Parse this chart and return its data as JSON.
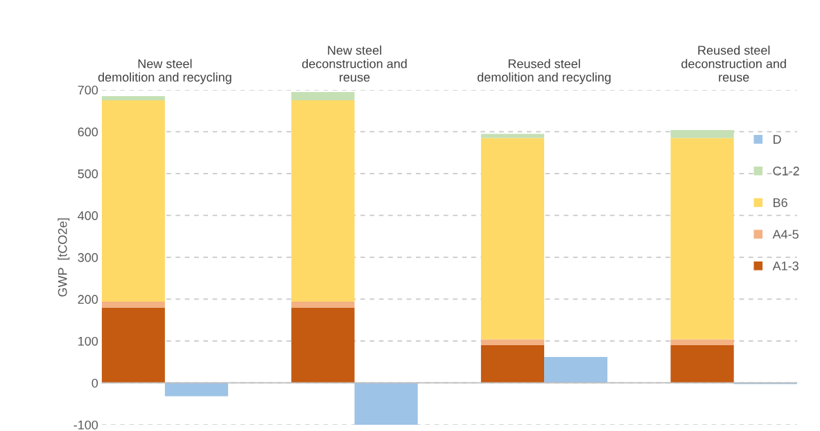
{
  "chart_data": {
    "type": "bar",
    "stacked": true,
    "categories": [
      "New steel\ndemolition and recycling",
      null,
      null,
      "New steel\ndeconstruction and\nreuse",
      null,
      null,
      "Reused steel\ndemolition and recycling",
      null,
      null,
      "Reused steel\ndeconstruction and\nreuse",
      null
    ],
    "series": [
      {
        "name": "A1-3",
        "color": "#c55a11",
        "values": [
          180,
          null,
          null,
          180,
          null,
          null,
          90,
          null,
          null,
          90,
          null
        ]
      },
      {
        "name": "A4-5",
        "color": "#f4b183",
        "values": [
          14,
          null,
          null,
          14,
          null,
          null,
          14,
          null,
          null,
          14,
          null
        ]
      },
      {
        "name": "B6",
        "color": "#ffd966",
        "values": [
          481,
          null,
          null,
          481,
          null,
          null,
          481,
          null,
          null,
          481,
          null
        ]
      },
      {
        "name": "C1-2",
        "color": "#c5e0b4",
        "values": [
          10,
          null,
          null,
          20,
          null,
          null,
          10,
          null,
          null,
          19,
          null
        ]
      },
      {
        "name": "D",
        "color": "#9dc3e6",
        "values": [
          null,
          -32,
          null,
          null,
          -100,
          null,
          null,
          62,
          null,
          null,
          -3
        ]
      }
    ],
    "ylabel": "GWP  [tCO2e]",
    "ylim": [
      -100,
      700
    ],
    "yticks": [
      -100,
      0,
      100,
      200,
      300,
      400,
      500,
      600,
      700
    ],
    "grid": "y",
    "legend": "right"
  }
}
